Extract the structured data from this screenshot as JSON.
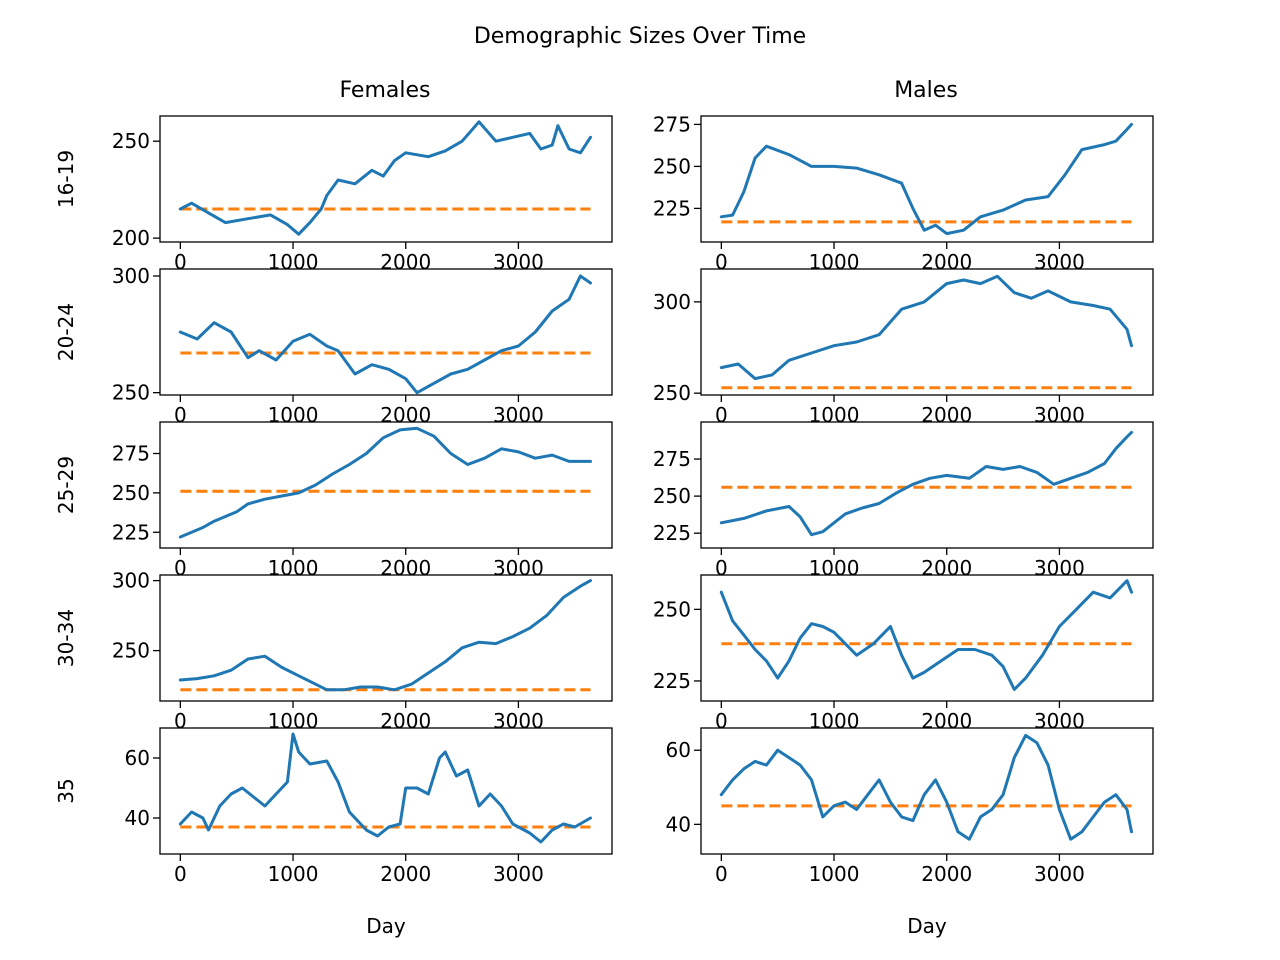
{
  "figure": {
    "title": "Demographic Sizes Over Time",
    "columns": [
      "Females",
      "Males"
    ],
    "row_labels": [
      "16-19",
      "20-24",
      "25-29",
      "30-34",
      "35"
    ],
    "xlabel": "Day"
  },
  "colors": {
    "series": "#1f77b4",
    "baseline": "#ff7f0e"
  },
  "chart_data": [
    {
      "type": "line",
      "row": "16-19",
      "column": "Females",
      "xlim": [
        0,
        3650
      ],
      "ylim": [
        198,
        263
      ],
      "yticks": [
        200,
        250
      ],
      "xticks": [
        0,
        1000,
        2000,
        3000
      ],
      "baseline": 215,
      "x": [
        0,
        100,
        250,
        400,
        600,
        800,
        950,
        1050,
        1150,
        1250,
        1300,
        1400,
        1550,
        1700,
        1800,
        1900,
        2000,
        2200,
        2350,
        2500,
        2650,
        2800,
        2950,
        3100,
        3200,
        3300,
        3350,
        3450,
        3550,
        3640
      ],
      "values": [
        215,
        218,
        213,
        208,
        210,
        212,
        207,
        202,
        208,
        215,
        222,
        230,
        228,
        235,
        232,
        240,
        244,
        242,
        245,
        250,
        260,
        250,
        252,
        254,
        246,
        248,
        258,
        246,
        244,
        252
      ]
    },
    {
      "type": "line",
      "row": "16-19",
      "column": "Males",
      "xlim": [
        0,
        3650
      ],
      "ylim": [
        205,
        280
      ],
      "yticks": [
        225,
        250,
        275
      ],
      "xticks": [
        0,
        1000,
        2000,
        3000
      ],
      "baseline": 217,
      "x": [
        0,
        100,
        200,
        300,
        400,
        600,
        800,
        1000,
        1200,
        1400,
        1600,
        1700,
        1800,
        1900,
        2000,
        2150,
        2300,
        2500,
        2700,
        2900,
        3050,
        3200,
        3400,
        3500,
        3600,
        3640
      ],
      "values": [
        220,
        221,
        235,
        255,
        262,
        257,
        250,
        250,
        249,
        245,
        240,
        225,
        212,
        215,
        210,
        212,
        220,
        224,
        230,
        232,
        245,
        260,
        263,
        265,
        272,
        275
      ]
    },
    {
      "type": "line",
      "row": "20-24",
      "column": "Females",
      "xlim": [
        0,
        3650
      ],
      "ylim": [
        249,
        303
      ],
      "yticks": [
        250,
        300
      ],
      "xticks": [
        0,
        1000,
        2000,
        3000
      ],
      "baseline": 267,
      "x": [
        0,
        150,
        300,
        450,
        600,
        700,
        850,
        1000,
        1150,
        1300,
        1400,
        1550,
        1700,
        1850,
        2000,
        2100,
        2250,
        2400,
        2550,
        2700,
        2850,
        3000,
        3150,
        3300,
        3450,
        3550,
        3640
      ],
      "values": [
        276,
        273,
        280,
        276,
        265,
        268,
        264,
        272,
        275,
        270,
        268,
        258,
        262,
        260,
        256,
        250,
        254,
        258,
        260,
        264,
        268,
        270,
        276,
        285,
        290,
        300,
        297
      ]
    },
    {
      "type": "line",
      "row": "20-24",
      "column": "Males",
      "xlim": [
        0,
        3650
      ],
      "ylim": [
        249,
        318
      ],
      "yticks": [
        250,
        300
      ],
      "xticks": [
        0,
        1000,
        2000,
        3000
      ],
      "baseline": 253,
      "x": [
        0,
        150,
        300,
        450,
        600,
        800,
        1000,
        1200,
        1400,
        1600,
        1800,
        2000,
        2150,
        2300,
        2450,
        2600,
        2750,
        2900,
        3100,
        3300,
        3450,
        3600,
        3640
      ],
      "values": [
        264,
        266,
        258,
        260,
        268,
        272,
        276,
        278,
        282,
        296,
        300,
        310,
        312,
        310,
        314,
        305,
        302,
        306,
        300,
        298,
        296,
        285,
        276
      ]
    },
    {
      "type": "line",
      "row": "25-29",
      "column": "Females",
      "xlim": [
        0,
        3650
      ],
      "ylim": [
        215,
        295
      ],
      "yticks": [
        225,
        250,
        275
      ],
      "xticks": [
        0,
        1000,
        2000,
        3000
      ],
      "baseline": 251,
      "x": [
        0,
        100,
        200,
        300,
        400,
        500,
        600,
        750,
        900,
        1050,
        1200,
        1350,
        1500,
        1650,
        1800,
        1950,
        2100,
        2250,
        2400,
        2550,
        2700,
        2850,
        3000,
        3150,
        3300,
        3450,
        3640
      ],
      "values": [
        222,
        225,
        228,
        232,
        235,
        238,
        243,
        246,
        248,
        250,
        255,
        262,
        268,
        275,
        285,
        290,
        291,
        286,
        275,
        268,
        272,
        278,
        276,
        272,
        274,
        270,
        270
      ]
    },
    {
      "type": "line",
      "row": "25-29",
      "column": "Males",
      "xlim": [
        0,
        3650
      ],
      "ylim": [
        215,
        300
      ],
      "yticks": [
        225,
        250,
        275
      ],
      "xticks": [
        0,
        1000,
        2000,
        3000
      ],
      "baseline": 256,
      "x": [
        0,
        200,
        400,
        600,
        700,
        800,
        900,
        1000,
        1100,
        1250,
        1400,
        1550,
        1700,
        1850,
        2000,
        2200,
        2350,
        2500,
        2650,
        2800,
        2950,
        3100,
        3250,
        3400,
        3500,
        3600,
        3640
      ],
      "values": [
        232,
        235,
        240,
        243,
        236,
        224,
        226,
        232,
        238,
        242,
        245,
        252,
        258,
        262,
        264,
        262,
        270,
        268,
        270,
        266,
        258,
        262,
        266,
        272,
        282,
        290,
        293
      ]
    },
    {
      "type": "line",
      "row": "30-34",
      "column": "Females",
      "xlim": [
        0,
        3650
      ],
      "ylim": [
        214,
        304
      ],
      "yticks": [
        250,
        300
      ],
      "xticks": [
        0,
        1000,
        2000,
        3000
      ],
      "baseline": 222,
      "x": [
        0,
        150,
        300,
        450,
        600,
        750,
        900,
        1050,
        1200,
        1300,
        1450,
        1600,
        1750,
        1900,
        2050,
        2200,
        2350,
        2500,
        2650,
        2800,
        2950,
        3100,
        3250,
        3400,
        3550,
        3640
      ],
      "values": [
        229,
        230,
        232,
        236,
        244,
        246,
        238,
        232,
        226,
        222,
        222,
        224,
        224,
        222,
        226,
        234,
        242,
        252,
        256,
        255,
        260,
        266,
        275,
        288,
        296,
        300
      ]
    },
    {
      "type": "line",
      "row": "30-34",
      "column": "Males",
      "xlim": [
        0,
        3650
      ],
      "ylim": [
        218,
        262
      ],
      "yticks": [
        225,
        250
      ],
      "xticks": [
        0,
        1000,
        2000,
        3000
      ],
      "baseline": 238,
      "x": [
        0,
        100,
        200,
        300,
        400,
        500,
        600,
        700,
        800,
        900,
        1000,
        1100,
        1200,
        1350,
        1500,
        1600,
        1700,
        1800,
        1950,
        2100,
        2250,
        2400,
        2500,
        2600,
        2700,
        2850,
        3000,
        3150,
        3300,
        3450,
        3600,
        3640
      ],
      "values": [
        256,
        246,
        241,
        236,
        232,
        226,
        232,
        240,
        245,
        244,
        242,
        238,
        234,
        238,
        244,
        234,
        226,
        228,
        232,
        236,
        236,
        234,
        230,
        222,
        226,
        234,
        244,
        250,
        256,
        254,
        260,
        256
      ]
    },
    {
      "type": "line",
      "row": "35",
      "column": "Females",
      "xlim": [
        0,
        3650
      ],
      "ylim": [
        28,
        70
      ],
      "yticks": [
        40,
        60
      ],
      "xticks": [
        0,
        1000,
        2000,
        3000
      ],
      "baseline": 37,
      "x": [
        0,
        100,
        200,
        250,
        350,
        450,
        550,
        650,
        750,
        850,
        950,
        1000,
        1050,
        1150,
        1300,
        1400,
        1500,
        1650,
        1750,
        1850,
        1950,
        2000,
        2100,
        2200,
        2300,
        2350,
        2450,
        2550,
        2650,
        2750,
        2850,
        2950,
        3100,
        3200,
        3300,
        3400,
        3500,
        3640
      ],
      "values": [
        38,
        42,
        40,
        36,
        44,
        48,
        50,
        47,
        44,
        48,
        52,
        68,
        62,
        58,
        59,
        52,
        42,
        36,
        34,
        37,
        38,
        50,
        50,
        48,
        60,
        62,
        54,
        56,
        44,
        48,
        44,
        38,
        35,
        32,
        36,
        38,
        37,
        40
      ]
    },
    {
      "type": "line",
      "row": "35",
      "column": "Males",
      "xlim": [
        0,
        3650
      ],
      "ylim": [
        32,
        66
      ],
      "yticks": [
        40,
        60
      ],
      "xticks": [
        0,
        1000,
        2000,
        3000
      ],
      "baseline": 45,
      "x": [
        0,
        100,
        200,
        300,
        400,
        500,
        600,
        700,
        800,
        900,
        1000,
        1100,
        1200,
        1300,
        1400,
        1500,
        1600,
        1700,
        1800,
        1900,
        2000,
        2100,
        2200,
        2300,
        2400,
        2500,
        2600,
        2700,
        2800,
        2900,
        3000,
        3100,
        3200,
        3300,
        3400,
        3500,
        3600,
        3640
      ],
      "values": [
        48,
        52,
        55,
        57,
        56,
        60,
        58,
        56,
        52,
        42,
        45,
        46,
        44,
        48,
        52,
        46,
        42,
        41,
        48,
        52,
        46,
        38,
        36,
        42,
        44,
        48,
        58,
        64,
        62,
        56,
        44,
        36,
        38,
        42,
        46,
        48,
        44,
        38
      ]
    }
  ]
}
